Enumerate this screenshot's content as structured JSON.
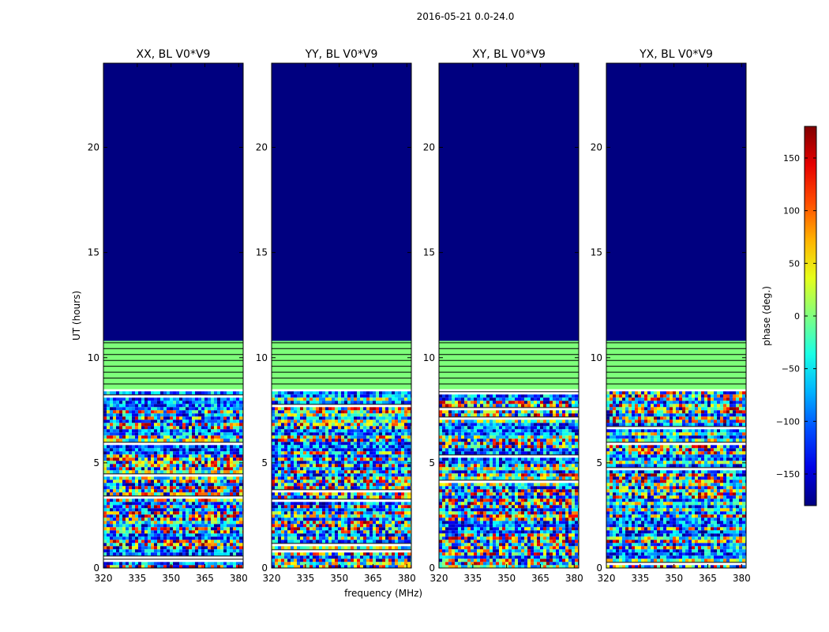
{
  "figure_title": "2016-05-21 0.0-24.0",
  "colors": {
    "low": "#000080",
    "blue": "#0000ff",
    "cyan": "#00e0ff",
    "green": "#7dff7a",
    "yellow": "#ffff00",
    "orange": "#ff9900",
    "red": "#ff0000",
    "high": "#800000"
  },
  "chart_data": [
    {
      "type": "heatmap",
      "title": "XX, BL V0*V9",
      "xlabel": "",
      "ylabel": "UT (hours)",
      "x_range": [
        320,
        382
      ],
      "x_ticks": [
        320,
        335,
        350,
        365,
        380
      ],
      "y_range": [
        0,
        24
      ],
      "y_ticks": [
        0,
        5,
        10,
        15,
        20
      ],
      "regions": [
        {
          "from_hour": 0.0,
          "to_hour": 8.4,
          "phase": "noisy wrapped phase (-180..180)"
        },
        {
          "from_hour": 8.5,
          "to_hour": 10.8,
          "phase": 0
        },
        {
          "from_hour": 10.8,
          "to_hour": 24.0,
          "phase": -180
        }
      ]
    },
    {
      "type": "heatmap",
      "title": "YY, BL V0*V9",
      "xlabel": "frequency (MHz)",
      "ylabel": "",
      "x_range": [
        320,
        382
      ],
      "x_ticks": [
        320,
        335,
        350,
        365,
        380
      ],
      "y_range": [
        0,
        24
      ],
      "y_ticks": [
        0,
        5,
        10,
        15,
        20
      ],
      "regions": [
        {
          "from_hour": 0.0,
          "to_hour": 8.4,
          "phase": "noisy wrapped phase (-180..180)"
        },
        {
          "from_hour": 8.5,
          "to_hour": 10.8,
          "phase": 0
        },
        {
          "from_hour": 10.8,
          "to_hour": 24.0,
          "phase": -180
        }
      ]
    },
    {
      "type": "heatmap",
      "title": "XY, BL V0*V9",
      "xlabel": "",
      "ylabel": "",
      "x_range": [
        320,
        382
      ],
      "x_ticks": [
        320,
        335,
        350,
        365,
        380
      ],
      "y_range": [
        0,
        24
      ],
      "y_ticks": [
        0,
        5,
        10,
        15,
        20
      ],
      "regions": [
        {
          "from_hour": 0.0,
          "to_hour": 8.4,
          "phase": "noisy wrapped phase (-180..180)"
        },
        {
          "from_hour": 8.5,
          "to_hour": 10.8,
          "phase": 0
        },
        {
          "from_hour": 10.8,
          "to_hour": 24.0,
          "phase": -180
        }
      ]
    },
    {
      "type": "heatmap",
      "title": "YX, BL V0*V9",
      "xlabel": "",
      "ylabel": "",
      "x_range": [
        320,
        382
      ],
      "x_ticks": [
        320,
        335,
        350,
        365,
        380
      ],
      "y_range": [
        0,
        24
      ],
      "y_ticks": [
        0,
        5,
        10,
        15,
        20
      ],
      "regions": [
        {
          "from_hour": 0.0,
          "to_hour": 8.4,
          "phase": "noisy wrapped phase (-180..180)"
        },
        {
          "from_hour": 8.5,
          "to_hour": 10.8,
          "phase": 0
        },
        {
          "from_hour": 10.8,
          "to_hour": 24.0,
          "phase": -180
        }
      ]
    }
  ],
  "colorbar": {
    "label": "phase (deg.)",
    "range": [
      -180,
      180
    ],
    "ticks": [
      150,
      100,
      50,
      0,
      -50,
      -100,
      -150
    ],
    "tick_labels": [
      "150",
      "100",
      "50",
      "0",
      "−50",
      "−100",
      "−150"
    ]
  }
}
